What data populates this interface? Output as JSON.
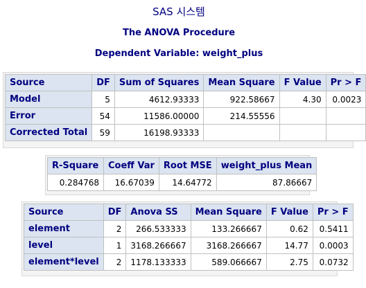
{
  "header": {
    "system_title": "SAS 시스템",
    "procedure_title": "The ANOVA Procedure",
    "dependent_var": "Dependent Variable: weight_plus"
  },
  "anova_table": {
    "columns": [
      "Source",
      "DF",
      "Sum of Squares",
      "Mean Square",
      "F Value",
      "Pr > F"
    ],
    "rows": [
      {
        "source": "Model",
        "df": "5",
        "ss": "4612.93333",
        "ms": "922.58667",
        "f": "4.30",
        "p": "0.0023"
      },
      {
        "source": "Error",
        "df": "54",
        "ss": "11586.00000",
        "ms": "214.55556",
        "f": "",
        "p": ""
      },
      {
        "source": "Corrected Total",
        "df": "59",
        "ss": "16198.93333",
        "ms": "",
        "f": "",
        "p": ""
      }
    ]
  },
  "fit_table": {
    "columns": [
      "R-Square",
      "Coeff Var",
      "Root MSE",
      "weight_plus Mean"
    ],
    "values": [
      "0.284768",
      "16.67039",
      "14.64772",
      "87.86667"
    ]
  },
  "effects_table": {
    "columns": [
      "Source",
      "DF",
      "Anova SS",
      "Mean Square",
      "F Value",
      "Pr > F"
    ],
    "rows": [
      {
        "source": "element",
        "df": "2",
        "ss": "266.533333",
        "ms": "133.266667",
        "f": "0.62",
        "p": "0.5411"
      },
      {
        "source": "level",
        "df": "1",
        "ss": "3168.266667",
        "ms": "3168.266667",
        "f": "14.77",
        "p": "0.0003"
      },
      {
        "source": "element*level",
        "df": "2",
        "ss": "1178.133333",
        "ms": "589.066667",
        "f": "2.75",
        "p": "0.0732"
      }
    ]
  }
}
